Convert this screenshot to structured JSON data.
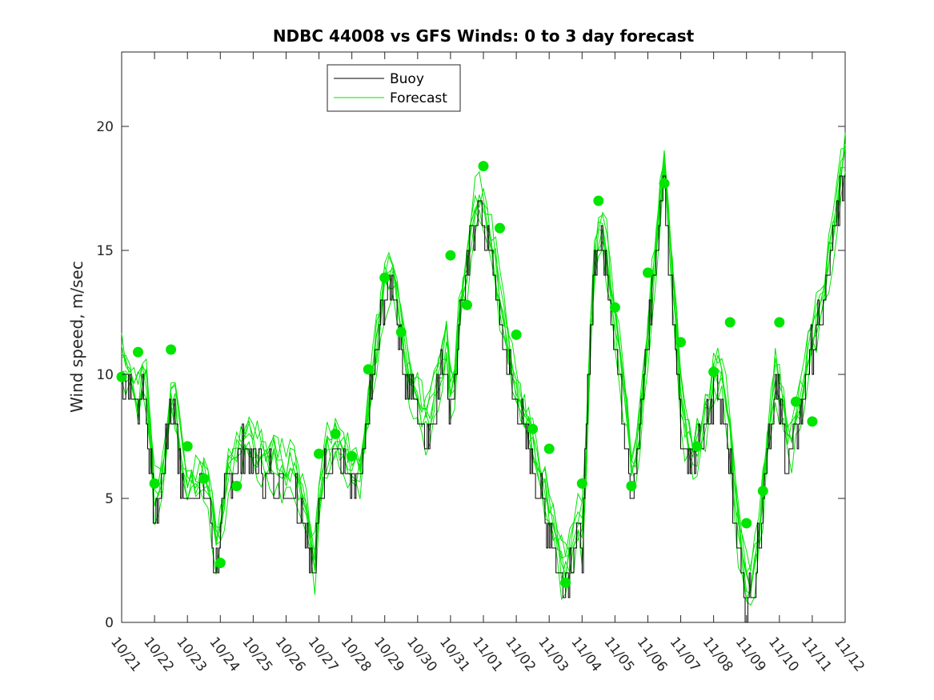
{
  "chart_data": {
    "type": "line",
    "title": "NDBC 44008 vs GFS Winds: 0 to 3 day forecast",
    "xlabel": "",
    "ylabel": "Wind speed, m/sec",
    "x_ticks": [
      "10/21",
      "10/22",
      "10/23",
      "10/24",
      "10/25",
      "10/26",
      "10/27",
      "10/28",
      "10/29",
      "10/30",
      "10/31",
      "11/01",
      "11/02",
      "11/03",
      "11/04",
      "11/05",
      "11/06",
      "11/07",
      "11/08",
      "11/09",
      "11/10",
      "11/11",
      "11/12"
    ],
    "xlim_days": [
      0,
      22
    ],
    "ylim": [
      0,
      23
    ],
    "y_ticks": [
      0,
      5,
      10,
      15,
      20
    ],
    "grid": false,
    "legend": {
      "placement": "top-center",
      "entries": [
        {
          "name": "Buoy",
          "color": "#000000"
        },
        {
          "name": "Forecast",
          "color": "#00e600"
        }
      ]
    },
    "buoy_points": [
      [
        0.0,
        9.8
      ],
      [
        0.3,
        9.5
      ],
      [
        0.5,
        8.5
      ],
      [
        0.7,
        9.8
      ],
      [
        0.85,
        7.5
      ],
      [
        1.0,
        4.5
      ],
      [
        1.2,
        4.8
      ],
      [
        1.5,
        8.5
      ],
      [
        1.7,
        8.0
      ],
      [
        1.8,
        6.0
      ],
      [
        2.0,
        5.0
      ],
      [
        2.3,
        5.2
      ],
      [
        2.5,
        5.5
      ],
      [
        2.7,
        4.5
      ],
      [
        2.85,
        2.5
      ],
      [
        3.0,
        3.0
      ],
      [
        3.2,
        5.5
      ],
      [
        3.5,
        6.3
      ],
      [
        3.8,
        7.0
      ],
      [
        4.0,
        6.5
      ],
      [
        4.3,
        6.0
      ],
      [
        4.6,
        6.0
      ],
      [
        4.9,
        5.5
      ],
      [
        5.2,
        5.5
      ],
      [
        5.5,
        4.5
      ],
      [
        5.7,
        3.5
      ],
      [
        5.85,
        1.5
      ],
      [
        6.0,
        4.0
      ],
      [
        6.2,
        6.2
      ],
      [
        6.5,
        6.8
      ],
      [
        6.8,
        6.2
      ],
      [
        7.0,
        5.5
      ],
      [
        7.3,
        5.8
      ],
      [
        7.5,
        8.0
      ],
      [
        7.7,
        10.0
      ],
      [
        7.9,
        12.2
      ],
      [
        8.1,
        13.5
      ],
      [
        8.3,
        13.5
      ],
      [
        8.5,
        11.5
      ],
      [
        8.7,
        9.5
      ],
      [
        8.9,
        9.0
      ],
      [
        9.1,
        8.0
      ],
      [
        9.3,
        7.5
      ],
      [
        9.5,
        8.5
      ],
      [
        9.7,
        9.5
      ],
      [
        9.9,
        11.0
      ],
      [
        10.05,
        8.0
      ],
      [
        10.3,
        12.5
      ],
      [
        10.5,
        13.5
      ],
      [
        10.7,
        16.0
      ],
      [
        10.9,
        16.5
      ],
      [
        11.1,
        15.5
      ],
      [
        11.3,
        14.5
      ],
      [
        11.5,
        12.5
      ],
      [
        11.7,
        11.0
      ],
      [
        11.9,
        9.5
      ],
      [
        12.1,
        8.5
      ],
      [
        12.3,
        7.5
      ],
      [
        12.5,
        6.5
      ],
      [
        12.7,
        5.5
      ],
      [
        12.9,
        4.5
      ],
      [
        13.1,
        3.5
      ],
      [
        13.3,
        2.0
      ],
      [
        13.5,
        1.5
      ],
      [
        13.7,
        2.5
      ],
      [
        13.9,
        3.5
      ],
      [
        14.05,
        3.0
      ],
      [
        14.2,
        9.0
      ],
      [
        14.4,
        14.5
      ],
      [
        14.6,
        15.5
      ],
      [
        14.8,
        14.0
      ],
      [
        15.0,
        11.5
      ],
      [
        15.2,
        9.5
      ],
      [
        15.4,
        7.5
      ],
      [
        15.55,
        5.2
      ],
      [
        15.7,
        6.5
      ],
      [
        15.9,
        9.5
      ],
      [
        16.1,
        12.5
      ],
      [
        16.3,
        15.0
      ],
      [
        16.5,
        18.0
      ],
      [
        16.7,
        14.5
      ],
      [
        16.9,
        11.0
      ],
      [
        17.05,
        7.5
      ],
      [
        17.3,
        6.5
      ],
      [
        17.5,
        6.5
      ],
      [
        17.7,
        7.5
      ],
      [
        17.9,
        8.5
      ],
      [
        18.1,
        9.5
      ],
      [
        18.3,
        9.0
      ],
      [
        18.5,
        7.0
      ],
      [
        18.7,
        3.5
      ],
      [
        18.9,
        2.0
      ],
      [
        19.05,
        0.5
      ],
      [
        19.3,
        2.0
      ],
      [
        19.5,
        4.5
      ],
      [
        19.7,
        7.5
      ],
      [
        19.9,
        9.5
      ],
      [
        20.05,
        8.5
      ],
      [
        20.3,
        6.5
      ],
      [
        20.5,
        7.5
      ],
      [
        20.7,
        8.5
      ],
      [
        20.9,
        10.5
      ],
      [
        21.1,
        11.5
      ],
      [
        21.3,
        12.0
      ],
      [
        21.5,
        14.0
      ],
      [
        21.7,
        15.5
      ],
      [
        21.9,
        17.5
      ],
      [
        22.0,
        18.5
      ]
    ],
    "forecast_points": [
      [
        0.0,
        9.9
      ],
      [
        0.5,
        10.9
      ],
      [
        1.0,
        5.6
      ],
      [
        1.5,
        11.0
      ],
      [
        2.0,
        7.1
      ],
      [
        2.5,
        5.8
      ],
      [
        3.0,
        2.4
      ],
      [
        3.5,
        5.5
      ],
      [
        6.0,
        6.8
      ],
      [
        6.5,
        7.6
      ],
      [
        7.0,
        6.7
      ],
      [
        7.5,
        10.2
      ],
      [
        8.0,
        13.9
      ],
      [
        8.5,
        11.7
      ],
      [
        10.0,
        14.8
      ],
      [
        10.5,
        12.8
      ],
      [
        11.0,
        18.4
      ],
      [
        11.5,
        15.9
      ],
      [
        12.0,
        11.6
      ],
      [
        12.5,
        7.8
      ],
      [
        13.0,
        7.0
      ],
      [
        13.5,
        1.6
      ],
      [
        14.0,
        5.6
      ],
      [
        14.5,
        17.0
      ],
      [
        15.0,
        12.7
      ],
      [
        15.5,
        5.5
      ],
      [
        16.0,
        14.1
      ],
      [
        16.5,
        17.7
      ],
      [
        17.0,
        11.3
      ],
      [
        17.5,
        7.1
      ],
      [
        18.0,
        10.1
      ],
      [
        18.5,
        12.1
      ],
      [
        19.0,
        4.0
      ],
      [
        19.5,
        5.3
      ],
      [
        20.0,
        12.1
      ],
      [
        20.5,
        8.9
      ],
      [
        21.0,
        8.1
      ]
    ]
  }
}
